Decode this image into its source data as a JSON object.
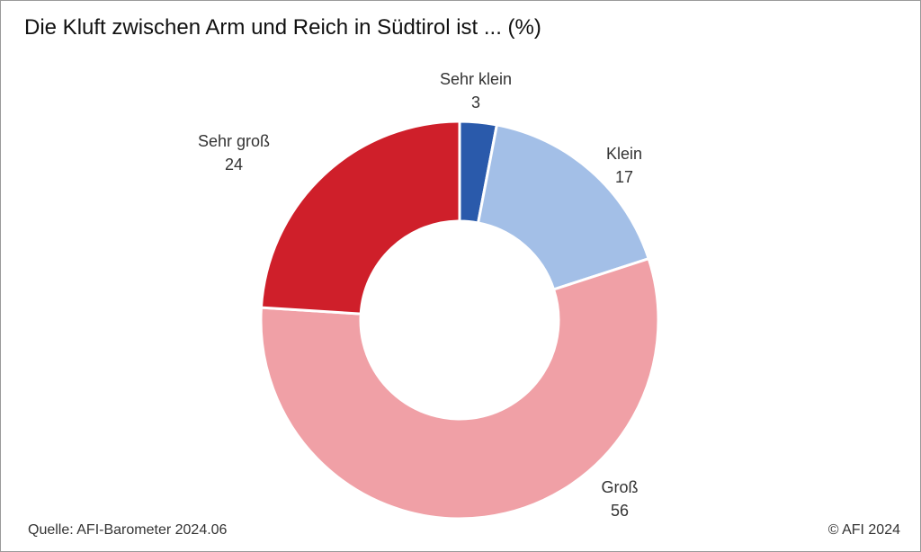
{
  "title": "Die Kluft zwischen Arm und Reich in Südtirol ist ... (%)",
  "source": "Quelle: AFI-Barometer 2024.06",
  "copyright": "© AFI 2024",
  "chart_data": {
    "type": "pie",
    "title": "Die Kluft zwischen Arm und Reich in Südtirol ist ... (%)",
    "donut": true,
    "categories": [
      "Sehr klein",
      "Klein",
      "Groß",
      "Sehr groß"
    ],
    "values": [
      3,
      17,
      56,
      24
    ],
    "colors": [
      "#2a5aab",
      "#a3bfe7",
      "#f0a0a6",
      "#cf1f2a"
    ],
    "labels": [
      {
        "name": "Sehr klein",
        "value": "3"
      },
      {
        "name": "Klein",
        "value": "17"
      },
      {
        "name": "Groß",
        "value": "56"
      },
      {
        "name": "Sehr groß",
        "value": "24"
      }
    ]
  }
}
